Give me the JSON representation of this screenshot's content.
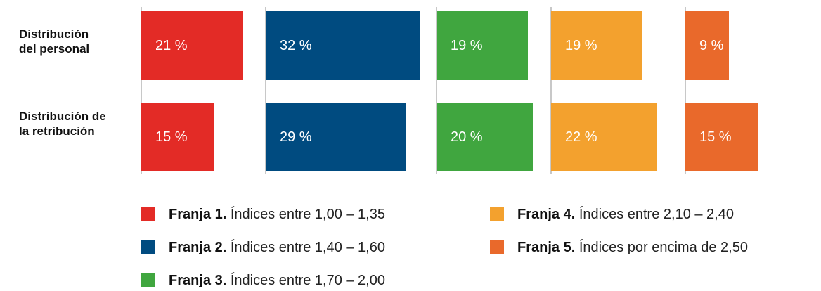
{
  "chart_data": {
    "type": "bar",
    "orientation": "horizontal",
    "categories": [
      "Distribución del personal",
      "Distribución de la retribución"
    ],
    "series": [
      {
        "name": "Franja 1.",
        "label": "Índices entre 1,00 – 1,35",
        "color": "#e32b26",
        "values": [
          21,
          15
        ],
        "value_labels": [
          "21 %",
          "15 %"
        ]
      },
      {
        "name": "Franja 2.",
        "label": "Índices entre 1,40 – 1,60",
        "color": "#004b80",
        "values": [
          32,
          29
        ],
        "value_labels": [
          "32 %",
          "29 %"
        ]
      },
      {
        "name": "Franja 3.",
        "label": "Índices entre 1,70 – 2,00",
        "color": "#40a63f",
        "values": [
          19,
          20
        ],
        "value_labels": [
          "19 %",
          "20 %"
        ]
      },
      {
        "name": "Franja 4.",
        "label": "Índices entre 2,10 – 2,40",
        "color": "#f3a12e",
        "values": [
          19,
          22
        ],
        "value_labels": [
          "19 %",
          "22 %"
        ]
      },
      {
        "name": "Franja 5.",
        "label": "Índices por encima de 2,50",
        "color": "#e9692b",
        "values": [
          9,
          15
        ],
        "value_labels": [
          "9 %",
          "15 %"
        ]
      }
    ]
  }
}
